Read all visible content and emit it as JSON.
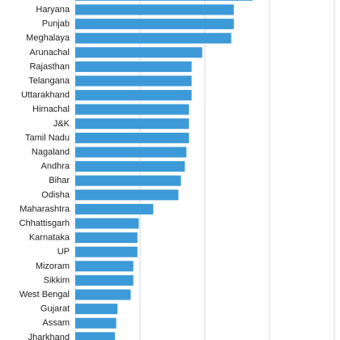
{
  "chart_data": {
    "type": "bar",
    "orientation": "horizontal",
    "title": "",
    "xlabel": "",
    "ylabel": "",
    "grid": true,
    "bar_color": "#3d9ad8",
    "grid_color": "#d9d9d9",
    "xlim": [
      0,
      100
    ],
    "categories": [
      "Haryana",
      "Punjab",
      "Meghalaya",
      "Arunachal",
      "Rajasthan",
      "Telangana",
      "Uttarakhand",
      "Himachal",
      "J&K",
      "Tamil Nadu",
      "Nagaland",
      "Andhra",
      "Bihar",
      "Odisha",
      "Maharashtra",
      "Chhattisgarh",
      "Karnataka",
      "UP",
      "Mizoram",
      "Sikkim",
      "West Bengal",
      "Gujarat",
      "Assam",
      "Jharkhand"
    ],
    "values": [
      61.2,
      61.2,
      60.2,
      49.0,
      44.9,
      44.9,
      44.9,
      43.9,
      43.9,
      43.9,
      42.9,
      42.3,
      40.8,
      39.8,
      30.1,
      24.5,
      24.0,
      24.0,
      22.4,
      22.4,
      21.4,
      16.3,
      15.8,
      15.3
    ],
    "partial_top_bar_value": 68.4
  }
}
